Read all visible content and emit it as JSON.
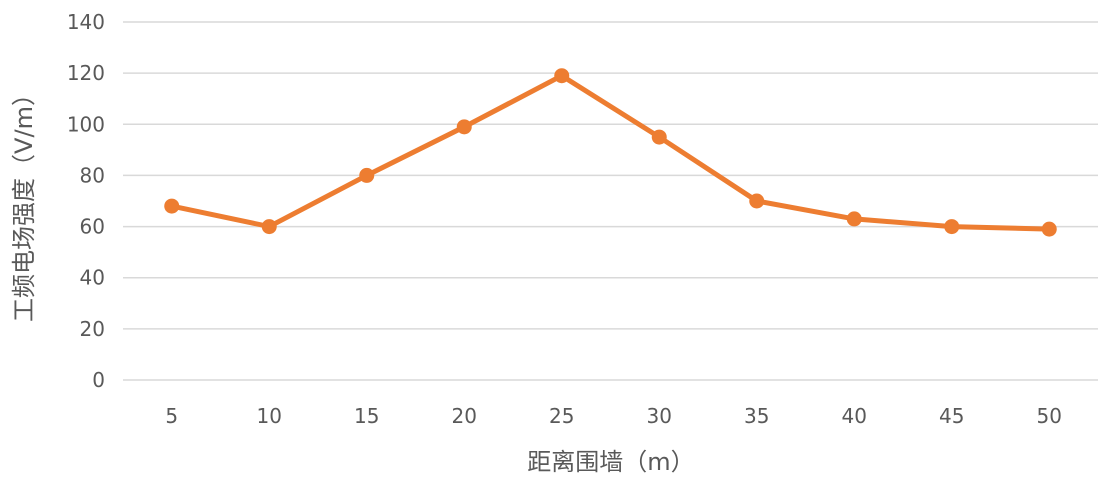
{
  "chart_data": {
    "type": "line",
    "title": "",
    "xlabel": "距离围墙（m）",
    "ylabel": "工频电场强度（V/m）",
    "categories": [
      "5",
      "10",
      "15",
      "20",
      "25",
      "30",
      "35",
      "40",
      "45",
      "50"
    ],
    "series": [
      {
        "values": [
          68,
          60,
          80,
          99,
          119,
          95,
          70,
          63,
          60,
          59
        ]
      }
    ],
    "ylim": [
      0,
      140
    ],
    "yticks": [
      0,
      20,
      40,
      60,
      80,
      100,
      120,
      140
    ],
    "grid": true,
    "legend": "none",
    "colors": {
      "line": "#ED7D31",
      "grid": "#D9D9D9",
      "text": "#595959"
    }
  }
}
